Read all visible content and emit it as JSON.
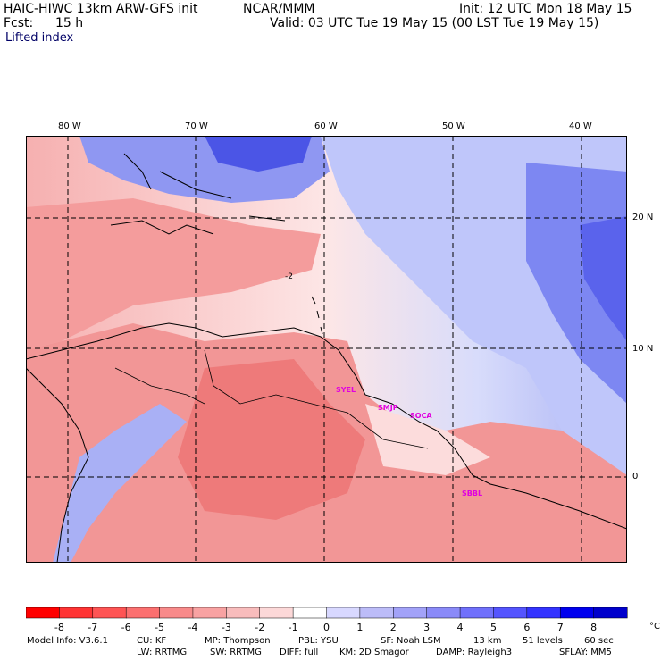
{
  "header": {
    "model_title": "HAIC-HIWC 13km ARW-GFS init",
    "org": "NCAR/MMM",
    "init": "Init: 12 UTC Mon 18 May 15",
    "fcst_label": "Fcst:",
    "fcst_value": "15 h",
    "valid": "Valid: 03 UTC Tue 19 May 15 (00 LST Tue 19 May 15)",
    "field": "Lifted index"
  },
  "map": {
    "lon_labels": [
      "80 W",
      "70 W",
      "60 W",
      "50 W",
      "40 W"
    ],
    "lat_labels": [
      "20 N",
      "10 N",
      "0"
    ],
    "contour_label": "-2",
    "sites": [
      "SYEL",
      "SMJP",
      "SOCA",
      "SBBL"
    ]
  },
  "colorbar": {
    "ticks": [
      "-8",
      "-7",
      "-6",
      "-5",
      "-4",
      "-3",
      "-2",
      "-1",
      "0",
      "1",
      "2",
      "3",
      "4",
      "5",
      "6",
      "7",
      "8"
    ],
    "unit": "°C",
    "colors": [
      "#ff0000",
      "#ff3333",
      "#fe5454",
      "#fb7070",
      "#f88a8a",
      "#f8a2a2",
      "#f8bcbc",
      "#fcd8d8",
      "#ffffff",
      "#d8d8ff",
      "#bcbcf8",
      "#a2a2f8",
      "#8a8af8",
      "#7070fb",
      "#5454fe",
      "#3333ff",
      "#0000ee",
      "#0000cc"
    ]
  },
  "footer": {
    "line1": [
      "Model Info: V3.6.1",
      "CU: KF",
      "MP: Thompson",
      "PBL: YSU",
      "SF: Noah LSM",
      "13 km",
      "51 levels",
      "60 sec"
    ],
    "line2": [
      "LW: RRTMG",
      "SW: RRTMG",
      "DIFF: full",
      "KM: 2D Smagor",
      "DAMP: Rayleigh3",
      "SFLAY: MM5"
    ]
  }
}
